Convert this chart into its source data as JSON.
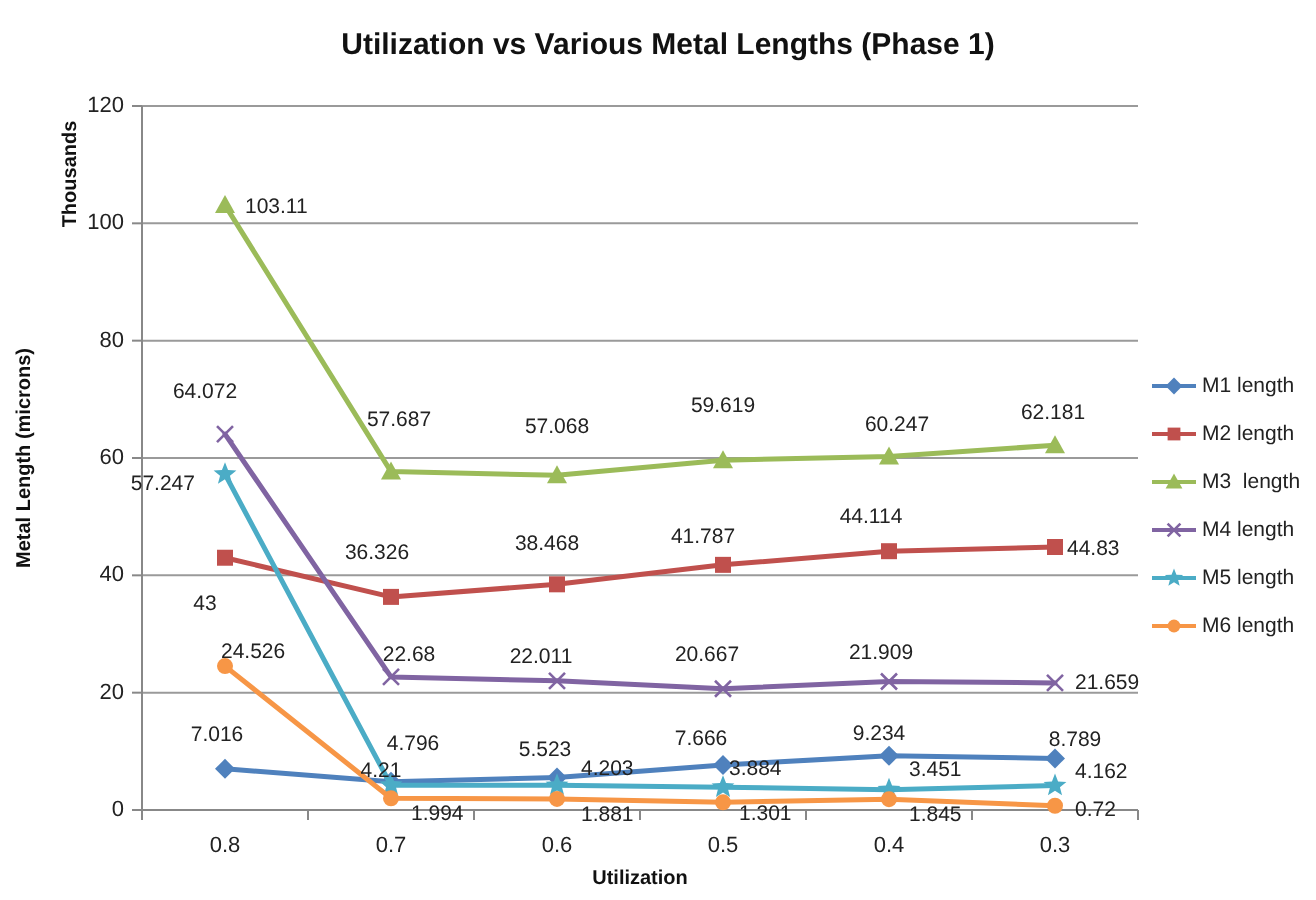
{
  "chart_data": {
    "type": "line",
    "title": "Utilization vs Various Metal Lengths (Phase 1)",
    "xlabel": "Utilization",
    "ylabel": "Metal Length (microns)",
    "annotations": [
      "Thousands"
    ],
    "categories": [
      "0.8",
      "0.7",
      "0.6",
      "0.5",
      "0.4",
      "0.3"
    ],
    "ylim": [
      0,
      120
    ],
    "yticks": [
      0,
      20,
      40,
      60,
      80,
      100,
      120
    ],
    "grid": "y",
    "legend": "right",
    "data_labels": true,
    "line_style": "solid",
    "series": [
      {
        "name": "M1 length",
        "color": "#4f81bd",
        "marker": "diamond",
        "values": [
          7.016,
          4.796,
          5.523,
          7.666,
          9.234,
          8.789
        ]
      },
      {
        "name": "M2 length",
        "color": "#c0504d",
        "marker": "square",
        "values": [
          43,
          36.326,
          38.468,
          41.787,
          44.114,
          44.83
        ]
      },
      {
        "name": "M3  length",
        "color": "#9bbb59",
        "marker": "triangle",
        "values": [
          103.11,
          57.687,
          57.068,
          59.619,
          60.247,
          62.181
        ]
      },
      {
        "name": "M4 length",
        "color": "#8064a2",
        "marker": "cross",
        "values": [
          64.072,
          22.68,
          22.011,
          20.667,
          21.909,
          21.659
        ]
      },
      {
        "name": "M5 length",
        "color": "#4bacc6",
        "marker": "star",
        "values": [
          57.247,
          4.21,
          4.203,
          3.884,
          3.451,
          4.162
        ]
      },
      {
        "name": "M6 length",
        "color": "#f79646",
        "marker": "circle",
        "values": [
          24.526,
          1.994,
          1.881,
          1.301,
          1.845,
          0.72
        ]
      }
    ]
  }
}
